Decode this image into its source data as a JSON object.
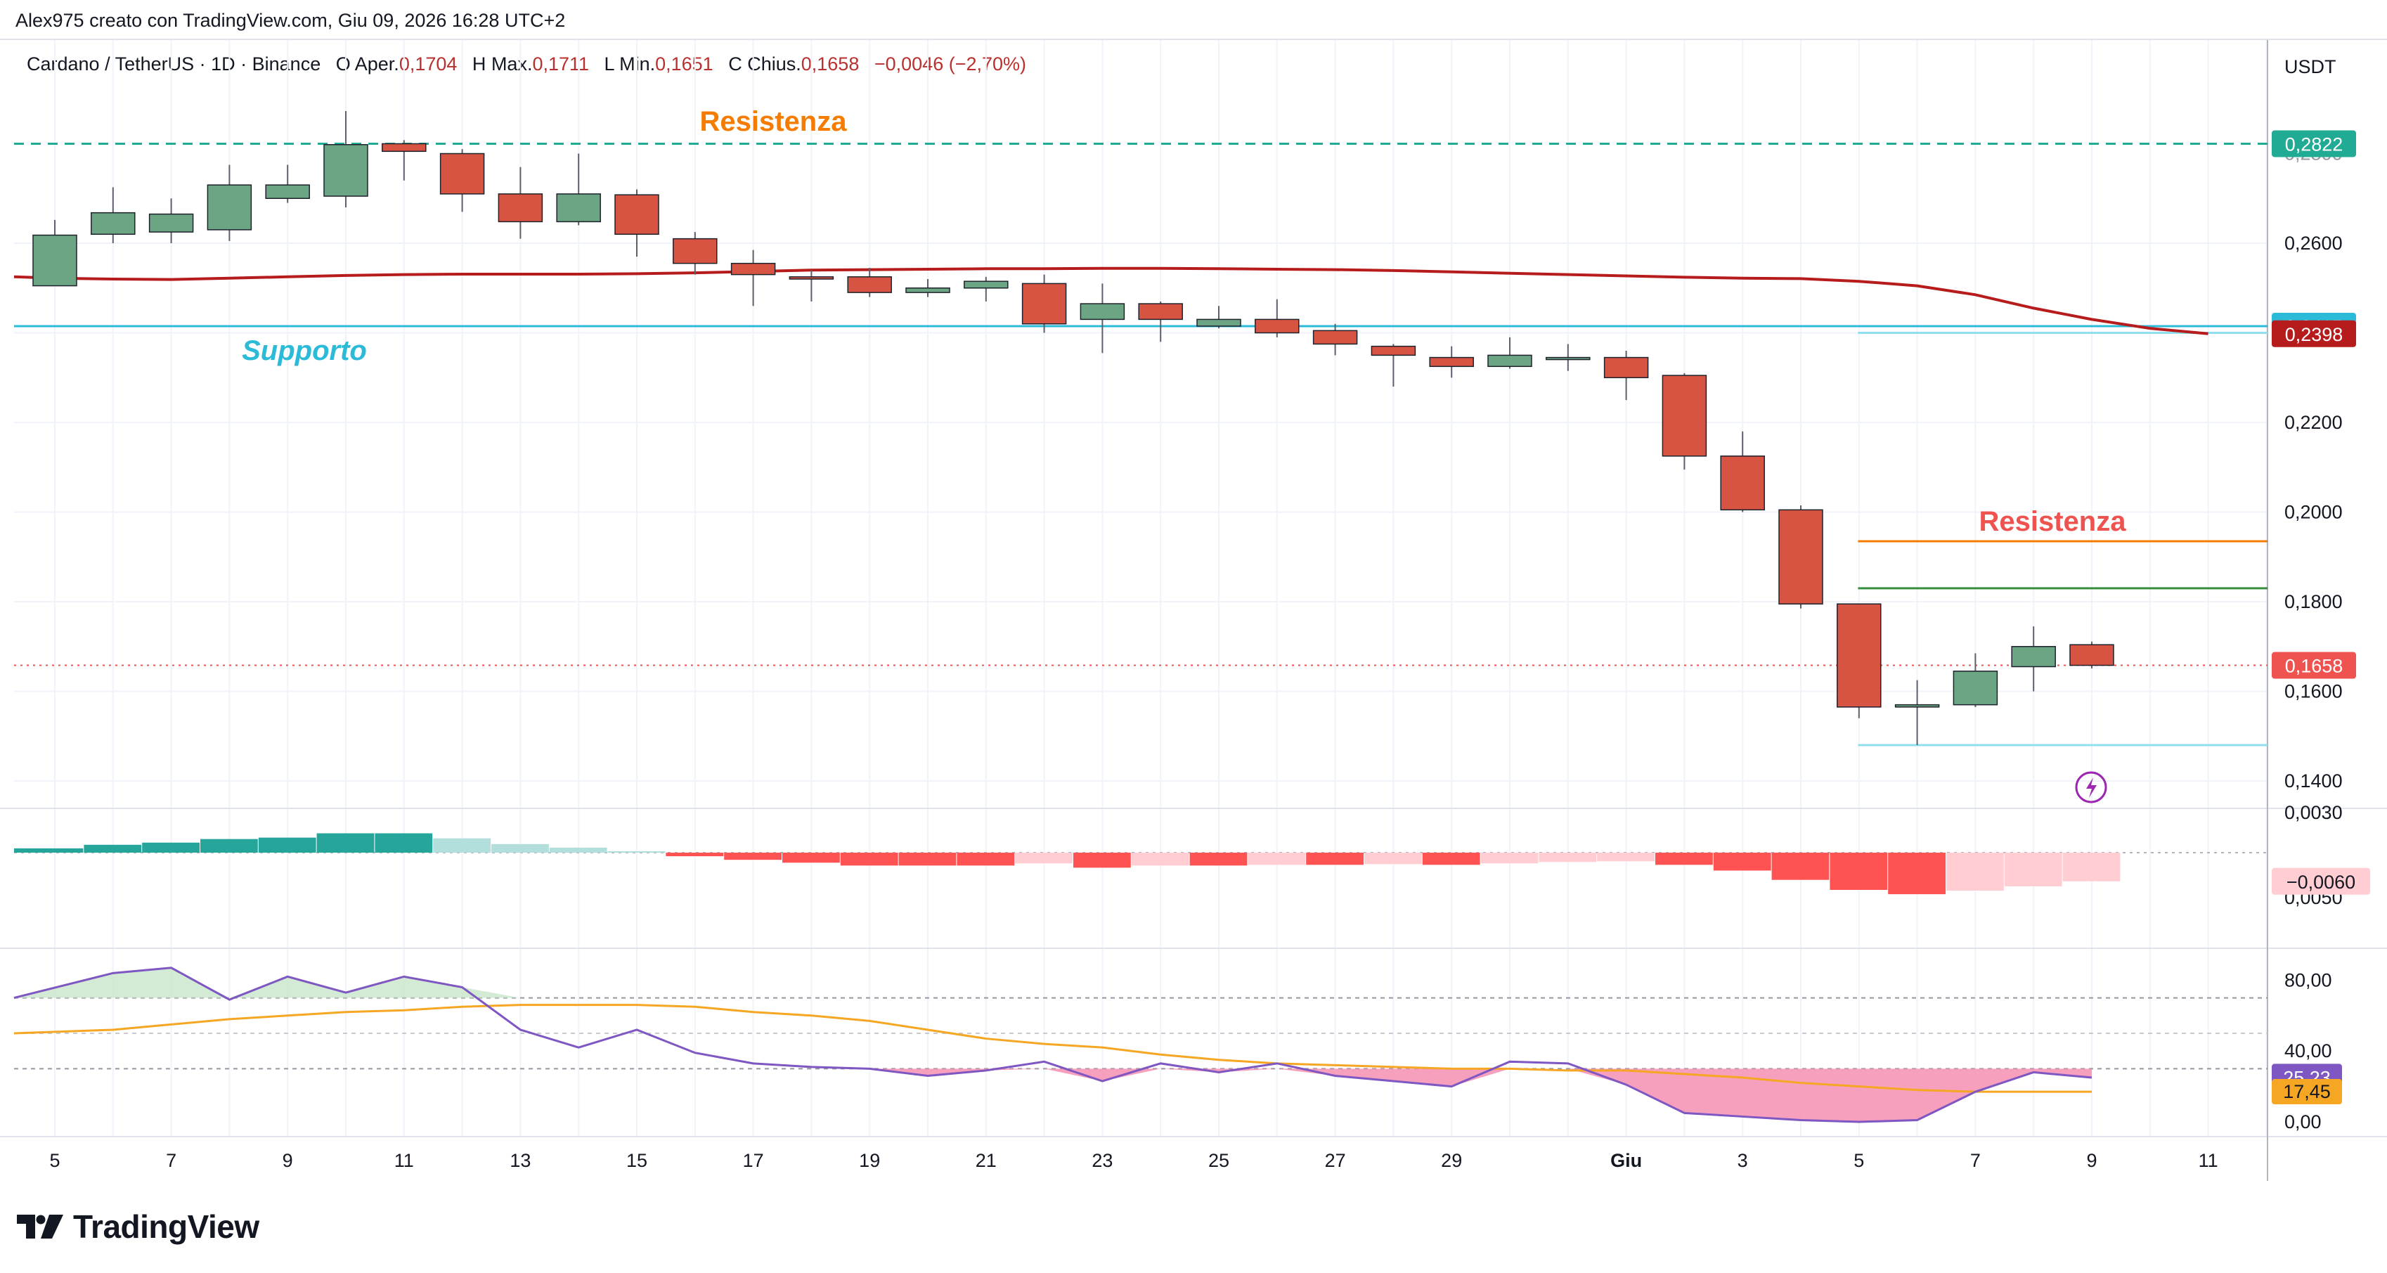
{
  "header": {
    "attribution": "Alex975 creato con TradingView.com, Giu 09, 2026 16:28 UTC+2",
    "symbol": "Cardano / TetherUS · 1D · Binance",
    "ohlc": {
      "o_label": "O",
      "o_key": "Aper.",
      "o_val": "0,1704",
      "h_label": "H",
      "h_key": "Max.",
      "h_val": "0,1711",
      "l_label": "L",
      "l_key": "Min.",
      "l_val": "0,1651",
      "c_label": "C",
      "c_key": "Chius.",
      "c_val": "0,1658",
      "change": "−0,0046 (−2,70%)"
    },
    "currency": "USDT"
  },
  "colors": {
    "up": "#6ba583",
    "down": "#d75442",
    "wick": "#5d606b",
    "ma": "#b71c1c",
    "support": "#2bbbd8",
    "resistance_dashed": "#22ab94",
    "resistance_orange": "#f57c00",
    "resistance_green": "#388e3c",
    "rsi": "#7e57c2",
    "rsi_ma": "#f5a623",
    "hist_up_strong": "#26a69a",
    "hist_up_weak": "#b2dfdb",
    "hist_down_strong": "#ff5252",
    "hist_down_weak": "#ffcdd2"
  },
  "annotations": {
    "resistenza_top": "Resistenza",
    "supporto": "Supporto",
    "resistenza_right": "Resistenza"
  },
  "price_badges": [
    {
      "text": "0,2822",
      "value": 0.2822,
      "color": "#22ab94"
    },
    {
      "text": "0,2415",
      "value": 0.2415,
      "color": "#2bbbd8"
    },
    {
      "text": "0,2398",
      "value": 0.2398,
      "color": "#b71c1c"
    },
    {
      "text": "0,1658",
      "value": 0.1658,
      "color": "#ef5350"
    }
  ],
  "indicator_badges": {
    "macd": "−0,0060",
    "rsi": "25,23",
    "rsi_ma": "17,45"
  },
  "footer": {
    "brand": "TradingView"
  },
  "chart_data": {
    "type": "candlestick",
    "price_axis": {
      "ticks": [
        "0,2600",
        "0,2400",
        "0,2200",
        "0,2000",
        "0,1800",
        "0,1600",
        "0,1400"
      ],
      "tick_values": [
        0.26,
        0.24,
        0.22,
        0.2,
        0.18,
        0.16,
        0.14
      ],
      "range": [
        0.1375,
        0.2895
      ],
      "partial_tick": "0,2800"
    },
    "x_axis": {
      "labels": [
        "5",
        "7",
        "9",
        "11",
        "13",
        "15",
        "17",
        "19",
        "21",
        "23",
        "25",
        "27",
        "29",
        "Giu",
        "3",
        "5",
        "7",
        "9",
        "11"
      ],
      "label_slots": [
        0,
        2,
        4,
        6,
        8,
        10,
        12,
        14,
        16,
        18,
        20,
        22,
        24,
        27,
        29,
        31,
        33,
        35,
        37
      ]
    },
    "candles": [
      {
        "o": 0.2505,
        "h": 0.2652,
        "l": 0.2505,
        "c": 0.2618
      },
      {
        "o": 0.262,
        "h": 0.2725,
        "l": 0.26,
        "c": 0.2668
      },
      {
        "o": 0.2625,
        "h": 0.27,
        "l": 0.26,
        "c": 0.2665
      },
      {
        "o": 0.263,
        "h": 0.2775,
        "l": 0.2605,
        "c": 0.273
      },
      {
        "o": 0.27,
        "h": 0.2775,
        "l": 0.269,
        "c": 0.273
      },
      {
        "o": 0.2705,
        "h": 0.2895,
        "l": 0.268,
        "c": 0.282
      },
      {
        "o": 0.2822,
        "h": 0.283,
        "l": 0.274,
        "c": 0.2805
      },
      {
        "o": 0.28,
        "h": 0.281,
        "l": 0.267,
        "c": 0.271
      },
      {
        "o": 0.271,
        "h": 0.277,
        "l": 0.261,
        "c": 0.2648
      },
      {
        "o": 0.2648,
        "h": 0.28,
        "l": 0.264,
        "c": 0.271
      },
      {
        "o": 0.2708,
        "h": 0.272,
        "l": 0.257,
        "c": 0.262
      },
      {
        "o": 0.261,
        "h": 0.2625,
        "l": 0.253,
        "c": 0.2555
      },
      {
        "o": 0.2555,
        "h": 0.2585,
        "l": 0.246,
        "c": 0.253
      },
      {
        "o": 0.2525,
        "h": 0.254,
        "l": 0.247,
        "c": 0.252
      },
      {
        "o": 0.2525,
        "h": 0.2545,
        "l": 0.248,
        "c": 0.249
      },
      {
        "o": 0.249,
        "h": 0.252,
        "l": 0.248,
        "c": 0.25
      },
      {
        "o": 0.25,
        "h": 0.2525,
        "l": 0.247,
        "c": 0.2515
      },
      {
        "o": 0.251,
        "h": 0.253,
        "l": 0.24,
        "c": 0.242
      },
      {
        "o": 0.243,
        "h": 0.251,
        "l": 0.2355,
        "c": 0.2465
      },
      {
        "o": 0.2465,
        "h": 0.247,
        "l": 0.238,
        "c": 0.243
      },
      {
        "o": 0.2415,
        "h": 0.246,
        "l": 0.241,
        "c": 0.243
      },
      {
        "o": 0.243,
        "h": 0.2475,
        "l": 0.239,
        "c": 0.24
      },
      {
        "o": 0.2405,
        "h": 0.242,
        "l": 0.235,
        "c": 0.2375
      },
      {
        "o": 0.237,
        "h": 0.2375,
        "l": 0.228,
        "c": 0.235
      },
      {
        "o": 0.2345,
        "h": 0.237,
        "l": 0.23,
        "c": 0.2325
      },
      {
        "o": 0.2325,
        "h": 0.239,
        "l": 0.232,
        "c": 0.235
      },
      {
        "o": 0.2345,
        "h": 0.2375,
        "l": 0.2315,
        "c": 0.2345
      },
      {
        "o": 0.2345,
        "h": 0.236,
        "l": 0.225,
        "c": 0.23
      },
      {
        "o": 0.2305,
        "h": 0.231,
        "l": 0.2095,
        "c": 0.2125
      },
      {
        "o": 0.2125,
        "h": 0.218,
        "l": 0.2,
        "c": 0.2005
      },
      {
        "o": 0.2005,
        "h": 0.2015,
        "l": 0.1785,
        "c": 0.1795
      },
      {
        "o": 0.1795,
        "h": 0.1795,
        "l": 0.154,
        "c": 0.1565
      },
      {
        "o": 0.1565,
        "h": 0.1625,
        "l": 0.148,
        "c": 0.157
      },
      {
        "o": 0.157,
        "h": 0.1685,
        "l": 0.1565,
        "c": 0.1645
      },
      {
        "o": 0.1655,
        "h": 0.1745,
        "l": 0.16,
        "c": 0.17
      },
      {
        "o": 0.1704,
        "h": 0.1711,
        "l": 0.1651,
        "c": 0.1658
      }
    ],
    "moving_average": {
      "slot_start": -1,
      "values": [
        0.2525,
        0.2522,
        0.252,
        0.2519,
        0.2522,
        0.2525,
        0.2528,
        0.253,
        0.2531,
        0.2531,
        0.2531,
        0.2532,
        0.2534,
        0.2537,
        0.254,
        0.2541,
        0.2542,
        0.2543,
        0.2543,
        0.2544,
        0.2544,
        0.2543,
        0.2542,
        0.2541,
        0.2539,
        0.2536,
        0.2533,
        0.253,
        0.2527,
        0.2524,
        0.2522,
        0.2521,
        0.2515,
        0.2505,
        0.2485,
        0.2455,
        0.243,
        0.241,
        0.2398
      ]
    },
    "horizontal_levels": [
      {
        "name": "Resistenza",
        "value": 0.2822,
        "style": "dashed",
        "slot_from": -1,
        "slot_to": 38
      },
      {
        "name": "Supporto",
        "value": 0.2415,
        "style": "solid",
        "slot_from": -1,
        "slot_to": 38
      },
      {
        "value": 0.24,
        "style": "solid-thin",
        "slot_from": 31,
        "slot_to": 38
      },
      {
        "name": "Resistenza",
        "value": 0.1935,
        "style": "solid",
        "slot_from": 31,
        "slot_to": 38
      },
      {
        "value": 0.183,
        "style": "solid",
        "slot_from": 31,
        "slot_to": 38
      },
      {
        "value": 0.148,
        "style": "solid-thin",
        "slot_from": 31,
        "slot_to": 38
      },
      {
        "value": 0.1658,
        "style": "dotted",
        "slot_from": -1,
        "slot_to": 38
      }
    ],
    "macd_histogram": {
      "range": [
        -0.0072,
        0.0035
      ],
      "partial_ticks": [
        "0,0030",
        "0,0050"
      ],
      "values": [
        0.0006,
        0.0011,
        0.0014,
        0.0019,
        0.0021,
        0.0027,
        0.0027,
        0.002,
        0.0012,
        0.0007,
        0.0002,
        -0.0005,
        -0.001,
        -0.0014,
        -0.0018,
        -0.0018,
        -0.0018,
        -0.0015,
        -0.0021,
        -0.0018,
        -0.0018,
        -0.0017,
        -0.0017,
        -0.0016,
        -0.0017,
        -0.0015,
        -0.0013,
        -0.0012,
        -0.0017,
        -0.0025,
        -0.0038,
        -0.0052,
        -0.0058,
        -0.0053,
        -0.0047,
        -0.004
      ]
    },
    "rsi": {
      "ticks": [
        "80,00",
        "40,00",
        "0,00"
      ],
      "tick_values": [
        80,
        40,
        0
      ],
      "bands": [
        70,
        50,
        30
      ],
      "range": [
        -2,
        95
      ],
      "values": [
        70,
        84,
        87,
        69,
        82,
        73,
        82,
        76,
        52,
        42,
        52,
        39,
        33,
        31,
        30,
        26,
        29,
        34,
        23,
        33,
        28,
        33,
        26,
        23,
        20,
        34,
        33,
        21,
        5,
        3,
        1,
        0,
        1,
        17,
        28,
        25
      ],
      "ma_values": [
        50,
        52,
        55,
        58,
        60,
        62,
        63,
        65,
        66,
        66,
        66,
        65,
        62,
        60,
        57,
        52,
        47,
        44,
        42,
        38,
        35,
        33,
        32,
        31,
        30,
        30,
        29,
        29,
        27,
        25,
        22,
        20,
        18,
        17,
        17,
        17
      ]
    }
  }
}
